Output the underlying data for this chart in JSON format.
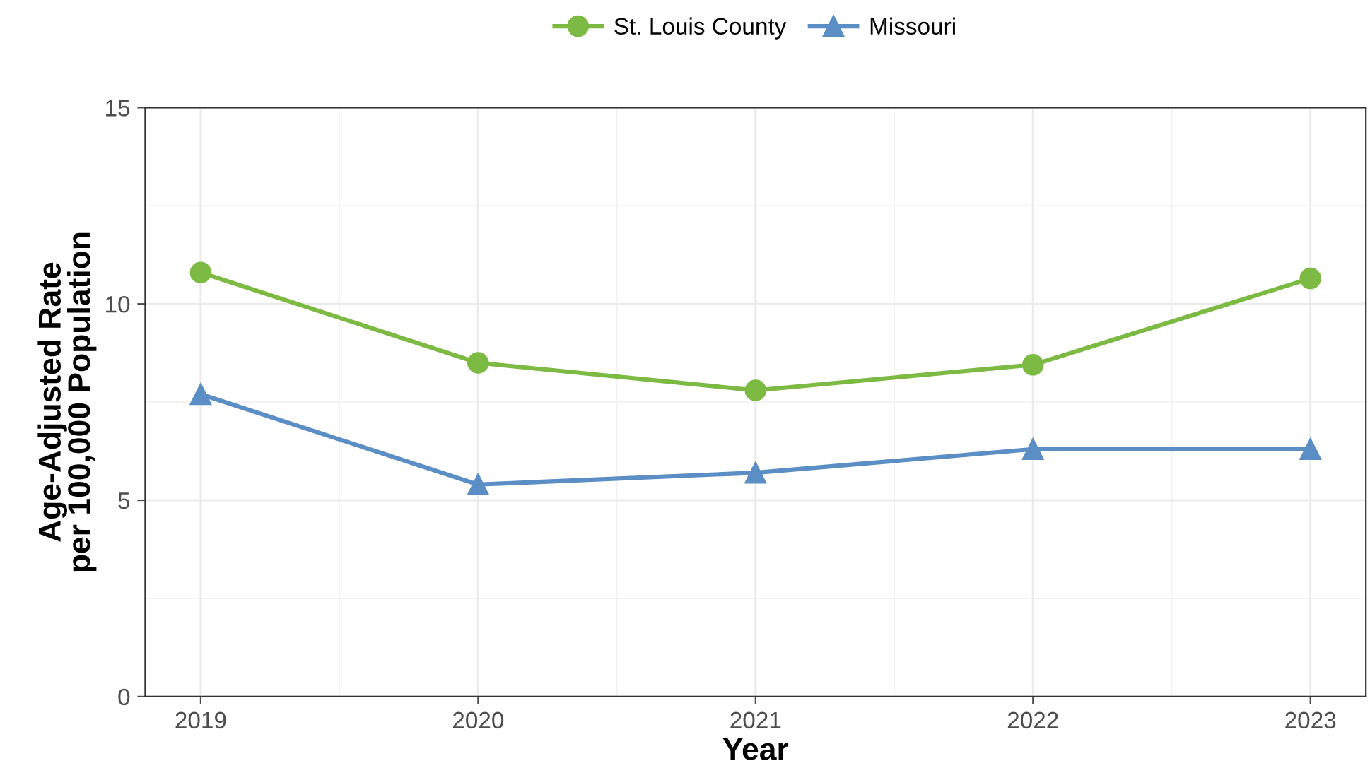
{
  "chart_data": {
    "type": "line",
    "xlabel": "Year",
    "ylabel": "Age-Adjusted Rate\nper 100,000 Population",
    "x": [
      2019,
      2020,
      2021,
      2022,
      2023
    ],
    "series": [
      {
        "name": "St. Louis County",
        "color": "#7dba43",
        "marker": "circle",
        "values": [
          10.8,
          8.5,
          7.8,
          8.45,
          10.65
        ]
      },
      {
        "name": "Missouri",
        "color": "#5b8ec4",
        "marker": "triangle",
        "values": [
          7.7,
          5.4,
          5.7,
          6.3,
          6.3
        ]
      }
    ],
    "xlim": [
      2018.8,
      2023.2
    ],
    "xticks": [
      2019,
      2020,
      2021,
      2022,
      2023
    ],
    "ylim": [
      0,
      15
    ],
    "yticks": [
      0,
      5,
      10,
      15
    ],
    "grid": true,
    "legend": "top",
    "line_style": "solid"
  }
}
